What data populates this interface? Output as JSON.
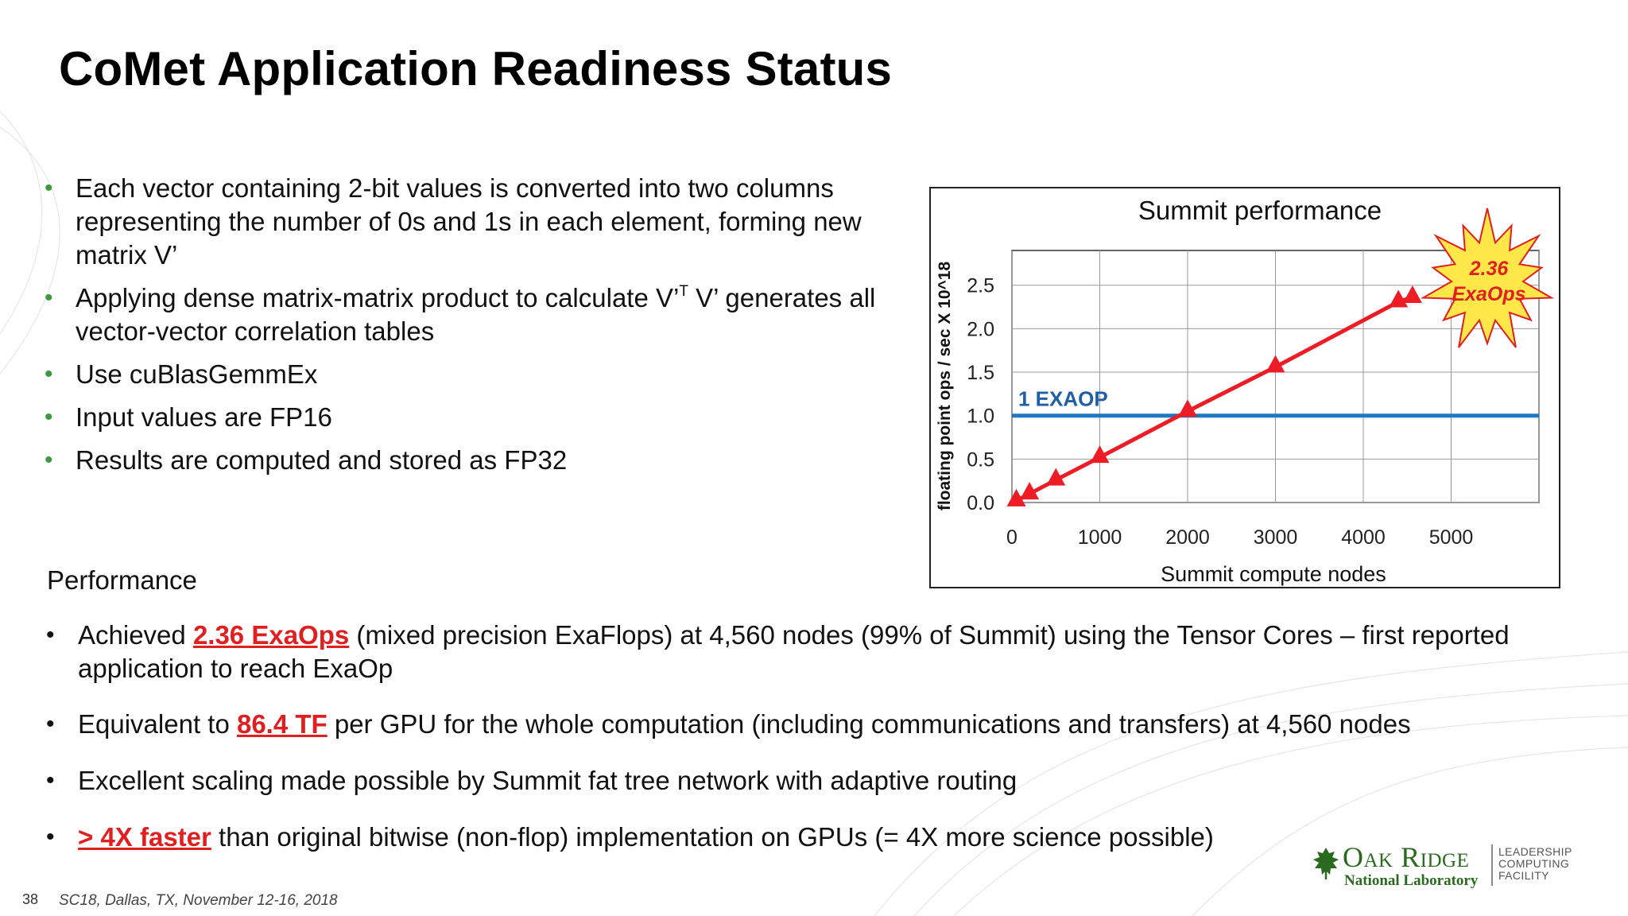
{
  "slide": {
    "title": "CoMet Application Readiness Status",
    "bullets": [
      {
        "text": "Each vector containing 2-bit values is converted into two columns representing the number of 0s and 1s in each element, forming new matrix V’"
      },
      {
        "pre": "Applying dense matrix-matrix product to calculate V’",
        "sup": "T",
        "post": " V’ generates all vector-vector correlation tables"
      },
      {
        "text": "Use cuBlasGemmEx"
      },
      {
        "text": "Input values are FP16"
      },
      {
        "text": "Results are computed and stored as FP32"
      }
    ],
    "performance_heading": "Performance",
    "performance_bullets": [
      {
        "pre": "Achieved ",
        "highlight": "2.36 ExaOps",
        "post": " (mixed precision ExaFlops) at 4,560 nodes (99% of Summit) using the Tensor Cores – first reported application to reach ExaOp"
      },
      {
        "pre": "Equivalent to ",
        "highlight": "86.4 TF",
        "post": " per GPU for the whole computation (including communications and transfers) at 4,560 nodes"
      },
      {
        "text": "Excellent scaling made possible by Summit fat tree network with adaptive routing"
      },
      {
        "pre": "",
        "highlight": "> 4X faster",
        "post": " than original bitwise (non-flop) implementation on GPUs (= 4X more science possible)"
      }
    ],
    "footer": {
      "page_number": "38",
      "event": "SC18, Dallas, TX, November 12-16, 2018"
    },
    "logo": {
      "name_line1": "Oak Ridge",
      "name_line2": "National Laboratory",
      "facility_lines": [
        "LEADERSHIP",
        "COMPUTING",
        "FACILITY"
      ]
    },
    "colors": {
      "bullet_green": "#3c9a3c",
      "highlight_red": "#e02020",
      "logo_green": "#2a6a1e"
    }
  },
  "chart_data": {
    "type": "line",
    "title": "Summit performance",
    "xlabel": "Summit compute nodes",
    "ylabel": "floating point ops / sec X 10^18",
    "xlim": [
      0,
      6000
    ],
    "ylim": [
      0,
      2.9
    ],
    "x_ticks": [
      0,
      1000,
      2000,
      3000,
      4000,
      5000
    ],
    "y_ticks": [
      0.0,
      0.5,
      1.0,
      1.5,
      2.0,
      2.5
    ],
    "y_tick_labels": [
      "0.0",
      "0.5",
      "1.0",
      "1.5",
      "2.0",
      "2.5"
    ],
    "grid": true,
    "series": [
      {
        "color": "#ee1c25",
        "marker": "triangle",
        "points": [
          {
            "x": 50,
            "y": 0.02
          },
          {
            "x": 200,
            "y": 0.1
          },
          {
            "x": 500,
            "y": 0.26
          },
          {
            "x": 1000,
            "y": 0.52
          },
          {
            "x": 2000,
            "y": 1.05
          },
          {
            "x": 3000,
            "y": 1.56
          },
          {
            "x": 4400,
            "y": 2.31
          },
          {
            "x": 4560,
            "y": 2.36
          }
        ]
      }
    ],
    "reference_line": {
      "y": 1.0,
      "label": "1 EXAOP",
      "color": "#1f78c1"
    },
    "burst_label": [
      "2.36",
      "ExaOps"
    ],
    "burst_colors": {
      "fill": "#ffe74a",
      "stroke": "#e02020",
      "text": "#e02020"
    }
  }
}
